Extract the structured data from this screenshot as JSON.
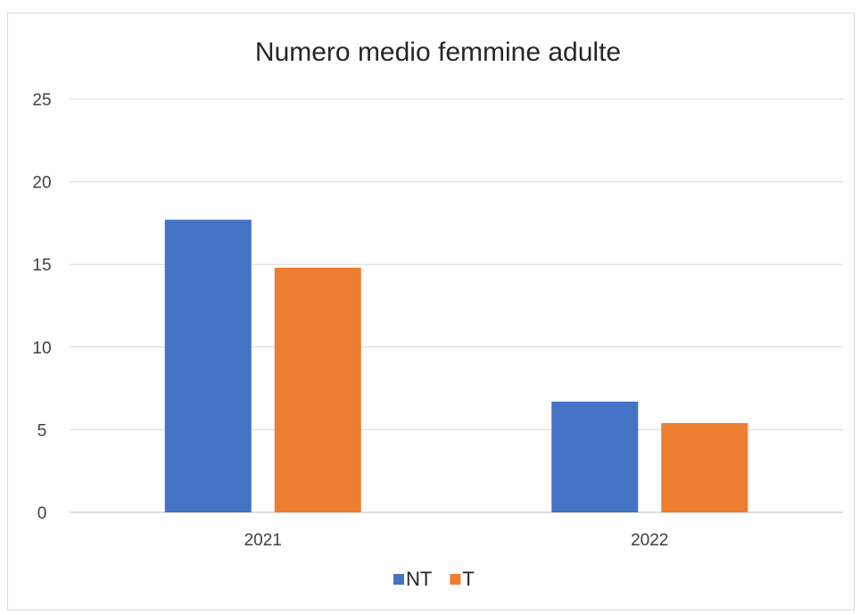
{
  "chart_data": {
    "type": "bar",
    "title": "Numero medio femmine adulte",
    "xlabel": "",
    "ylabel": "",
    "categories": [
      "2021",
      "2022"
    ],
    "series": [
      {
        "name": "NT",
        "values": [
          17.7,
          6.7
        ],
        "color": "#4472C4"
      },
      {
        "name": "T",
        "values": [
          14.8,
          5.4
        ],
        "color": "#ED7D31"
      }
    ],
    "ylim": [
      0,
      25
    ],
    "yticks": [
      "0",
      "5",
      "10",
      "15",
      "20",
      "25"
    ],
    "grid": true,
    "legend_position": "bottom"
  }
}
